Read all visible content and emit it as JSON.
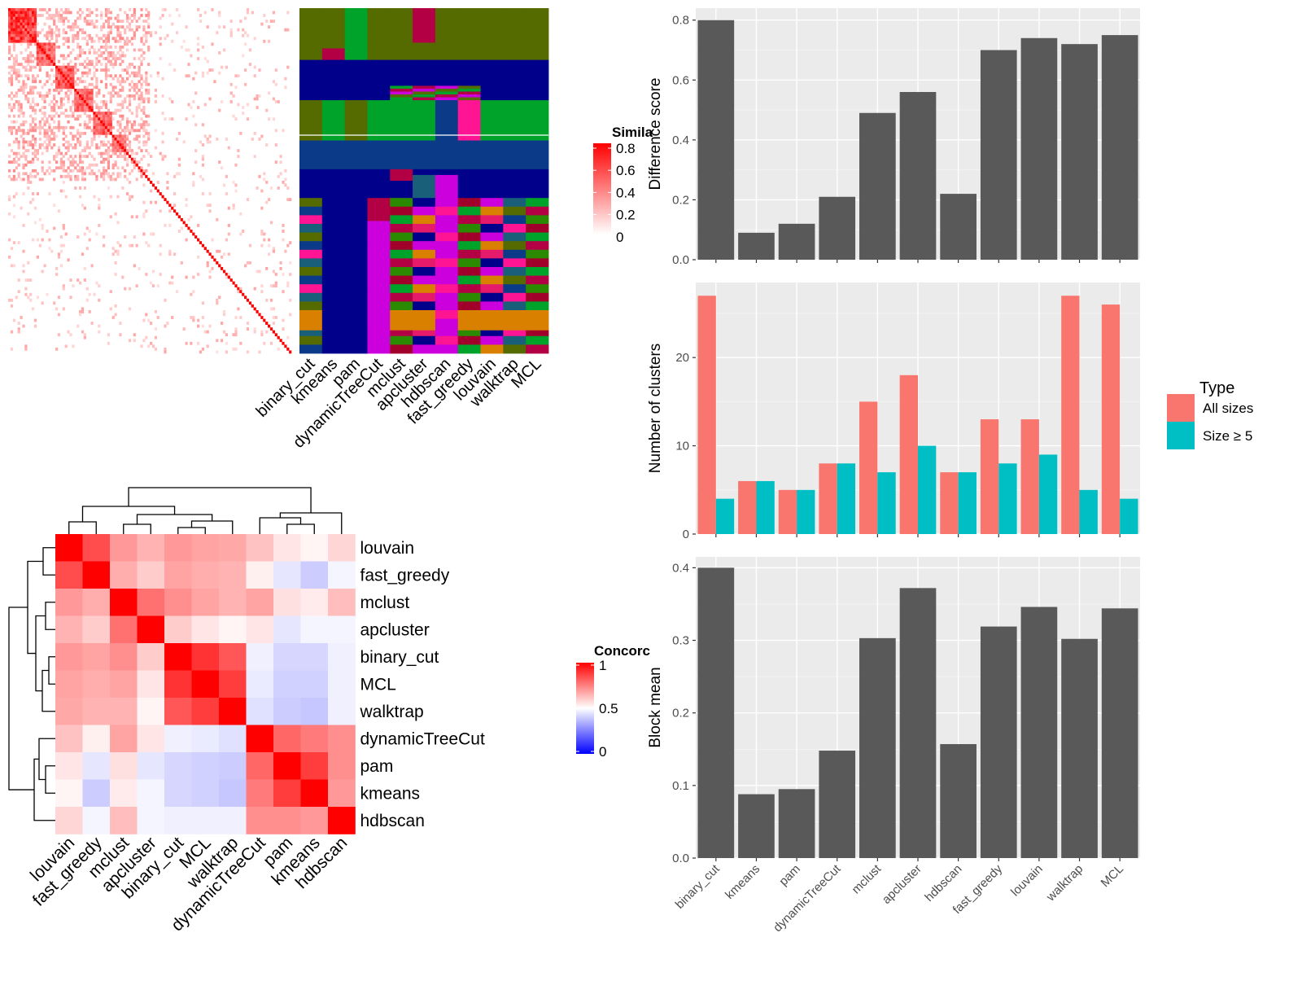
{
  "methods_order": [
    "binary_cut",
    "kmeans",
    "pam",
    "dynamicTreeCut",
    "mclust",
    "apcluster",
    "hdbscan",
    "fast_greedy",
    "louvain",
    "walktrap",
    "MCL"
  ],
  "similarity_legend": {
    "title": "Simila",
    "ticks": [
      "0.8",
      "0.6",
      "0.4",
      "0.2",
      "0"
    ],
    "colors": [
      "#ffffff",
      "#ff0000"
    ]
  },
  "concordance_legend": {
    "title": "Concorc",
    "ticks": [
      "1",
      "0.5",
      "0"
    ],
    "colors": [
      "#0000ff",
      "#ffffff",
      "#ff0000"
    ]
  },
  "membership_palette": [
    "#556b00",
    "#00008b",
    "#00a32a",
    "#0b3b88",
    "#cc00dd",
    "#b30045",
    "#ff1493",
    "#d98000",
    "#2b8a00",
    "#1a5f7a",
    "#e51a6a",
    "#a0002a"
  ],
  "concordance": {
    "order": [
      "louvain",
      "fast_greedy",
      "mclust",
      "apcluster",
      "binary_cut",
      "MCL",
      "walktrap",
      "dynamicTreeCut",
      "pam",
      "kmeans",
      "hdbscan"
    ],
    "matrix": [
      [
        1.0,
        0.85,
        0.7,
        0.65,
        0.7,
        0.68,
        0.67,
        0.62,
        0.55,
        0.52,
        0.58
      ],
      [
        0.85,
        1.0,
        0.66,
        0.6,
        0.68,
        0.66,
        0.65,
        0.53,
        0.45,
        0.4,
        0.48
      ],
      [
        0.7,
        0.66,
        1.0,
        0.78,
        0.72,
        0.68,
        0.65,
        0.68,
        0.56,
        0.54,
        0.63
      ],
      [
        0.65,
        0.6,
        0.78,
        1.0,
        0.6,
        0.55,
        0.52,
        0.55,
        0.45,
        0.48,
        0.48
      ],
      [
        0.7,
        0.68,
        0.72,
        0.6,
        1.0,
        0.9,
        0.83,
        0.47,
        0.42,
        0.42,
        0.47
      ],
      [
        0.68,
        0.66,
        0.68,
        0.55,
        0.9,
        1.0,
        0.88,
        0.46,
        0.41,
        0.41,
        0.47
      ],
      [
        0.67,
        0.65,
        0.65,
        0.52,
        0.83,
        0.88,
        1.0,
        0.44,
        0.4,
        0.39,
        0.47
      ],
      [
        0.62,
        0.53,
        0.68,
        0.55,
        0.47,
        0.46,
        0.44,
        1.0,
        0.8,
        0.76,
        0.72
      ],
      [
        0.55,
        0.45,
        0.56,
        0.45,
        0.42,
        0.41,
        0.4,
        0.8,
        1.0,
        0.88,
        0.72
      ],
      [
        0.52,
        0.4,
        0.54,
        0.48,
        0.42,
        0.41,
        0.39,
        0.76,
        0.88,
        1.0,
        0.7
      ],
      [
        0.58,
        0.48,
        0.63,
        0.48,
        0.47,
        0.47,
        0.47,
        0.72,
        0.72,
        0.7,
        1.0
      ]
    ]
  },
  "chart_data": [
    {
      "type": "bar",
      "categories": [
        "binary_cut",
        "kmeans",
        "pam",
        "dynamicTreeCut",
        "mclust",
        "apcluster",
        "hdbscan",
        "fast_greedy",
        "louvain",
        "walktrap",
        "MCL"
      ],
      "values": [
        0.8,
        0.09,
        0.12,
        0.21,
        0.49,
        0.56,
        0.22,
        0.7,
        0.74,
        0.72,
        0.75
      ],
      "ylabel": "Difference score",
      "ylim": [
        0,
        0.84
      ],
      "yticks": [
        "0.0",
        "0.2",
        "0.4",
        "0.6",
        "0.8"
      ],
      "bar_color": "#595959"
    },
    {
      "type": "bar",
      "categories": [
        "binary_cut",
        "kmeans",
        "pam",
        "dynamicTreeCut",
        "mclust",
        "apcluster",
        "hdbscan",
        "fast_greedy",
        "louvain",
        "walktrap",
        "MCL"
      ],
      "series": [
        {
          "name": "All sizes",
          "values": [
            27,
            6,
            5,
            8,
            15,
            18,
            7,
            13,
            13,
            27,
            26
          ],
          "color": "#f8766d"
        },
        {
          "name": "Size ≥ 5",
          "values": [
            4,
            6,
            5,
            8,
            7,
            10,
            7,
            8,
            9,
            5,
            4
          ],
          "color": "#00bfc4"
        }
      ],
      "ylabel": "Number of clusters",
      "ylim": [
        0,
        28.5
      ],
      "yticks": [
        "0",
        "10",
        "20"
      ],
      "legend_title": "Type"
    },
    {
      "type": "bar",
      "categories": [
        "binary_cut",
        "kmeans",
        "pam",
        "dynamicTreeCut",
        "mclust",
        "apcluster",
        "hdbscan",
        "fast_greedy",
        "louvain",
        "walktrap",
        "MCL"
      ],
      "values": [
        0.4,
        0.088,
        0.095,
        0.148,
        0.303,
        0.372,
        0.157,
        0.319,
        0.346,
        0.302,
        0.344
      ],
      "ylabel": "Block mean",
      "ylim": [
        0,
        0.415
      ],
      "yticks": [
        "0.0",
        "0.1",
        "0.2",
        "0.3",
        "0.4"
      ],
      "bar_color": "#595959"
    }
  ]
}
